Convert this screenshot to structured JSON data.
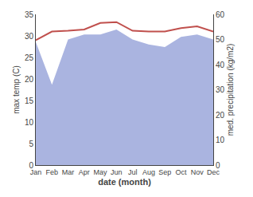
{
  "chart_data": {
    "type": "line",
    "xlabel": "date (month)",
    "ylabel": "max temp (C)",
    "y2label": "med. precipitation (kg/m2)",
    "categories": [
      "Jan",
      "Feb",
      "Mar",
      "Apr",
      "May",
      "Jun",
      "Jul",
      "Aug",
      "Sep",
      "Oct",
      "Nov",
      "Dec"
    ],
    "series": [
      {
        "type": "area",
        "axis": "y2",
        "color": "#aab4e0",
        "values": [
          49,
          32,
          50,
          52,
          52,
          54,
          50,
          48,
          47,
          51,
          52,
          50
        ]
      },
      {
        "type": "line",
        "color": "#c0504d",
        "values": [
          29.0,
          31.0,
          31.2,
          31.5,
          33.0,
          33.2,
          31.2,
          31.0,
          31.0,
          31.8,
          32.2,
          31.0
        ]
      }
    ],
    "ylim": [
      0,
      35
    ],
    "yticks": [
      0,
      5,
      10,
      15,
      20,
      25,
      30,
      35
    ],
    "y2lim": [
      0,
      60
    ],
    "y2ticks": [
      0,
      10,
      20,
      30,
      40,
      50,
      60
    ],
    "grid": false
  }
}
